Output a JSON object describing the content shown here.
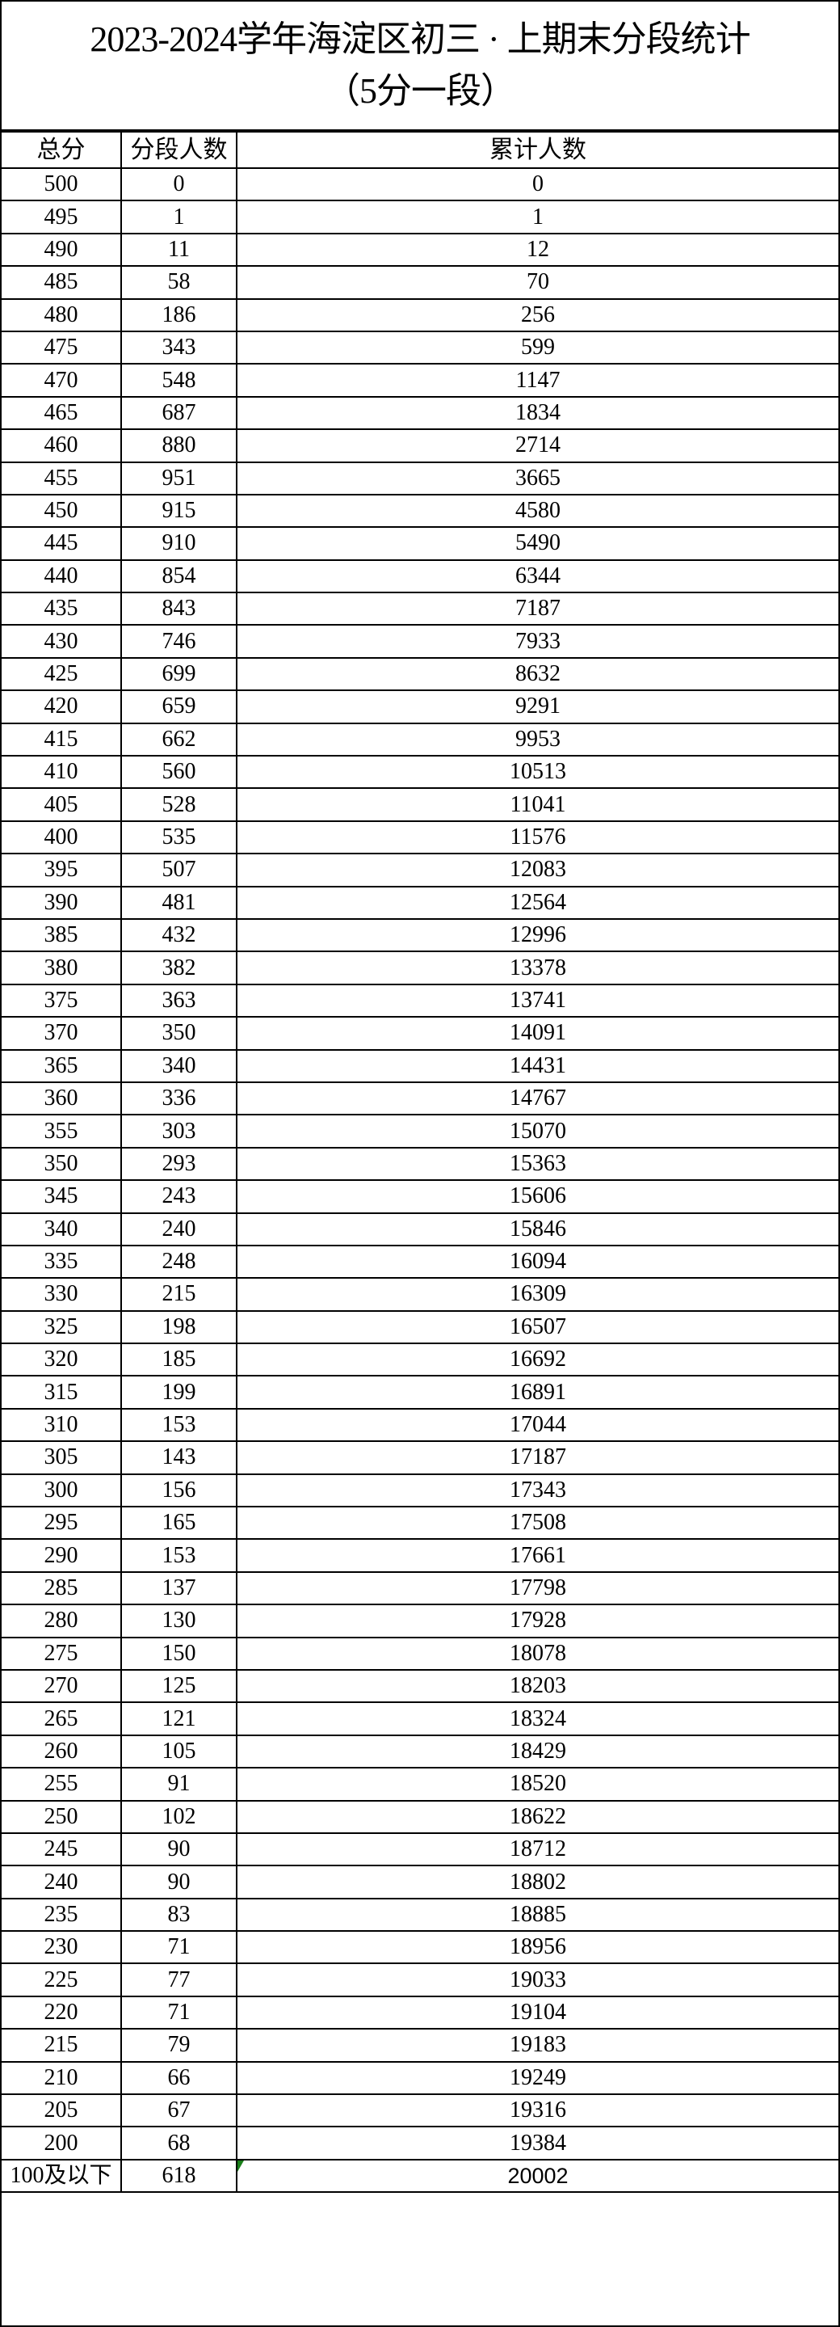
{
  "title": "2023-2024学年海淀区初三 · 上期末分段统计",
  "subtitle": "（5分一段）",
  "columns": [
    "总分",
    "分段人数",
    "累计人数"
  ],
  "rows": [
    [
      "500",
      "0",
      "0"
    ],
    [
      "495",
      "1",
      "1"
    ],
    [
      "490",
      "11",
      "12"
    ],
    [
      "485",
      "58",
      "70"
    ],
    [
      "480",
      "186",
      "256"
    ],
    [
      "475",
      "343",
      "599"
    ],
    [
      "470",
      "548",
      "1147"
    ],
    [
      "465",
      "687",
      "1834"
    ],
    [
      "460",
      "880",
      "2714"
    ],
    [
      "455",
      "951",
      "3665"
    ],
    [
      "450",
      "915",
      "4580"
    ],
    [
      "445",
      "910",
      "5490"
    ],
    [
      "440",
      "854",
      "6344"
    ],
    [
      "435",
      "843",
      "7187"
    ],
    [
      "430",
      "746",
      "7933"
    ],
    [
      "425",
      "699",
      "8632"
    ],
    [
      "420",
      "659",
      "9291"
    ],
    [
      "415",
      "662",
      "9953"
    ],
    [
      "410",
      "560",
      "10513"
    ],
    [
      "405",
      "528",
      "11041"
    ],
    [
      "400",
      "535",
      "11576"
    ],
    [
      "395",
      "507",
      "12083"
    ],
    [
      "390",
      "481",
      "12564"
    ],
    [
      "385",
      "432",
      "12996"
    ],
    [
      "380",
      "382",
      "13378"
    ],
    [
      "375",
      "363",
      "13741"
    ],
    [
      "370",
      "350",
      "14091"
    ],
    [
      "365",
      "340",
      "14431"
    ],
    [
      "360",
      "336",
      "14767"
    ],
    [
      "355",
      "303",
      "15070"
    ],
    [
      "350",
      "293",
      "15363"
    ],
    [
      "345",
      "243",
      "15606"
    ],
    [
      "340",
      "240",
      "15846"
    ],
    [
      "335",
      "248",
      "16094"
    ],
    [
      "330",
      "215",
      "16309"
    ],
    [
      "325",
      "198",
      "16507"
    ],
    [
      "320",
      "185",
      "16692"
    ],
    [
      "315",
      "199",
      "16891"
    ],
    [
      "310",
      "153",
      "17044"
    ],
    [
      "305",
      "143",
      "17187"
    ],
    [
      "300",
      "156",
      "17343"
    ],
    [
      "295",
      "165",
      "17508"
    ],
    [
      "290",
      "153",
      "17661"
    ],
    [
      "285",
      "137",
      "17798"
    ],
    [
      "280",
      "130",
      "17928"
    ],
    [
      "275",
      "150",
      "18078"
    ],
    [
      "270",
      "125",
      "18203"
    ],
    [
      "265",
      "121",
      "18324"
    ],
    [
      "260",
      "105",
      "18429"
    ],
    [
      "255",
      "91",
      "18520"
    ],
    [
      "250",
      "102",
      "18622"
    ],
    [
      "245",
      "90",
      "18712"
    ],
    [
      "240",
      "90",
      "18802"
    ],
    [
      "235",
      "83",
      "18885"
    ],
    [
      "230",
      "71",
      "18956"
    ],
    [
      "225",
      "77",
      "19033"
    ],
    [
      "220",
      "71",
      "19104"
    ],
    [
      "215",
      "79",
      "19183"
    ],
    [
      "210",
      "66",
      "19249"
    ],
    [
      "205",
      "67",
      "19316"
    ],
    [
      "200",
      "68",
      "19384"
    ],
    [
      "100及以下",
      "618",
      "20002"
    ]
  ],
  "flag_color": "#1a7f1a"
}
